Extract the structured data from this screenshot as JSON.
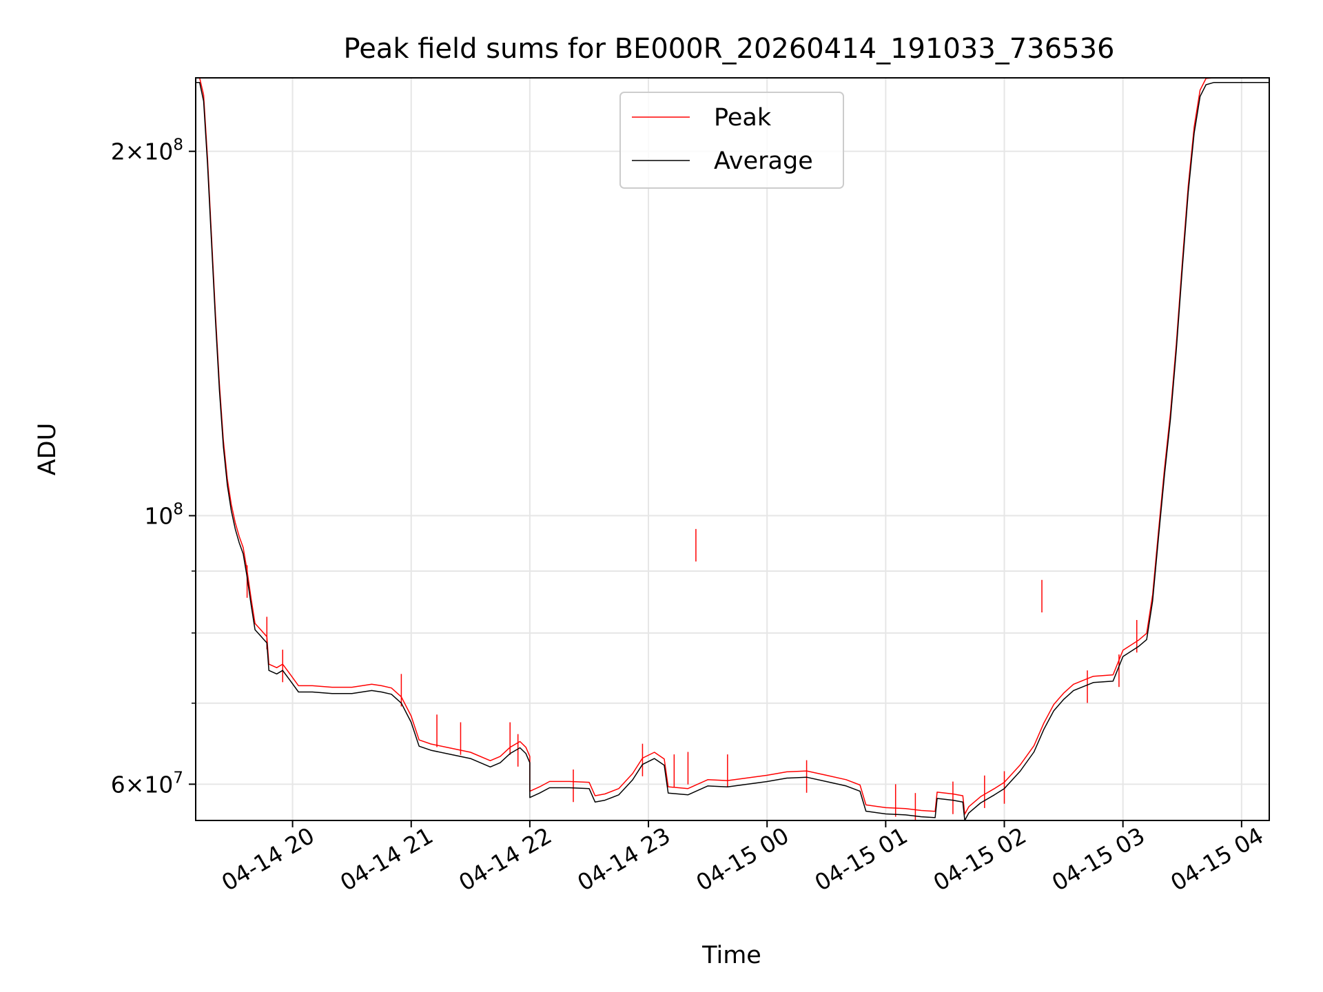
{
  "chart_data": {
    "type": "line",
    "title": "Peak field sums for BE000R_20260414_191033_736536",
    "xlabel": "Time",
    "ylabel": "ADU",
    "y_scale": "log",
    "xlim": [
      "2026-04-14 19:11",
      "2026-04-15 04:14"
    ],
    "ylim": [
      56000000,
      230000000
    ],
    "grid": true,
    "legend_position": "top-center",
    "x_tick_labels": [
      {
        "t": "2026-04-14 20:00",
        "label": "04-14 20"
      },
      {
        "t": "2026-04-14 21:00",
        "label": "04-14 21"
      },
      {
        "t": "2026-04-14 22:00",
        "label": "04-14 22"
      },
      {
        "t": "2026-04-14 23:00",
        "label": "04-14 23"
      },
      {
        "t": "2026-04-15 00:00",
        "label": "04-15 00"
      },
      {
        "t": "2026-04-15 01:00",
        "label": "04-15 01"
      },
      {
        "t": "2026-04-15 02:00",
        "label": "04-15 02"
      },
      {
        "t": "2026-04-15 03:00",
        "label": "04-15 03"
      },
      {
        "t": "2026-04-15 04:00",
        "label": "04-15 04"
      }
    ],
    "y_major_ticks": [
      {
        "value": 60000000,
        "base": "6",
        "exp": "7"
      },
      {
        "value": 100000000,
        "base": "",
        "exp": "8"
      },
      {
        "value": 200000000,
        "base": "2",
        "exp": "8"
      }
    ],
    "y_minor_ticks": [
      70000000,
      80000000,
      90000000
    ],
    "series": [
      {
        "name": "Average",
        "color": "#000000",
        "points": [
          [
            "2026-04-14 19:11",
            228000000
          ],
          [
            "2026-04-14 19:13",
            228000000
          ],
          [
            "2026-04-14 19:15",
            220000000
          ],
          [
            "2026-04-14 19:17",
            195000000
          ],
          [
            "2026-04-14 19:19",
            168000000
          ],
          [
            "2026-04-14 19:21",
            145000000
          ],
          [
            "2026-04-14 19:23",
            127000000
          ],
          [
            "2026-04-14 19:25",
            114000000
          ],
          [
            "2026-04-14 19:27",
            106000000
          ],
          [
            "2026-04-14 19:29",
            101000000
          ],
          [
            "2026-04-14 19:31",
            97500000
          ],
          [
            "2026-04-14 19:33",
            95000000
          ],
          [
            "2026-04-14 19:35",
            93000000
          ],
          [
            "2026-04-14 19:37",
            89000000
          ],
          [
            "2026-04-14 19:39",
            84500000
          ],
          [
            "2026-04-14 19:41",
            80500000
          ],
          [
            "2026-04-14 19:44",
            79500000
          ],
          [
            "2026-04-14 19:47",
            78500000
          ],
          [
            "2026-04-14 19:48",
            74500000
          ],
          [
            "2026-04-14 19:52",
            74000000
          ],
          [
            "2026-04-14 19:55",
            74500000
          ],
          [
            "2026-04-14 19:59",
            73000000
          ],
          [
            "2026-04-14 20:03",
            71500000
          ],
          [
            "2026-04-14 20:10",
            71500000
          ],
          [
            "2026-04-14 20:20",
            71300000
          ],
          [
            "2026-04-14 20:30",
            71300000
          ],
          [
            "2026-04-14 20:40",
            71700000
          ],
          [
            "2026-04-14 20:45",
            71500000
          ],
          [
            "2026-04-14 20:50",
            71200000
          ],
          [
            "2026-04-14 20:55",
            70000000
          ],
          [
            "2026-04-14 21:00",
            67500000
          ],
          [
            "2026-04-14 21:04",
            64500000
          ],
          [
            "2026-04-14 21:10",
            64000000
          ],
          [
            "2026-04-14 21:20",
            63500000
          ],
          [
            "2026-04-14 21:30",
            63000000
          ],
          [
            "2026-04-14 21:40",
            62000000
          ],
          [
            "2026-04-14 21:45",
            62500000
          ],
          [
            "2026-04-14 21:50",
            63600000
          ],
          [
            "2026-04-14 21:55",
            64300000
          ],
          [
            "2026-04-14 21:58",
            63600000
          ],
          [
            "2026-04-14 22:00",
            62500000
          ],
          [
            "2026-04-14 22:00",
            58500000
          ],
          [
            "2026-04-14 22:05",
            59000000
          ],
          [
            "2026-04-14 22:10",
            59600000
          ],
          [
            "2026-04-14 22:20",
            59600000
          ],
          [
            "2026-04-14 22:30",
            59500000
          ],
          [
            "2026-04-14 22:33",
            58000000
          ],
          [
            "2026-04-14 22:38",
            58200000
          ],
          [
            "2026-04-14 22:45",
            58800000
          ],
          [
            "2026-04-14 22:52",
            60500000
          ],
          [
            "2026-04-14 22:57",
            62300000
          ],
          [
            "2026-04-14 23:03",
            63000000
          ],
          [
            "2026-04-14 23:08",
            62200000
          ],
          [
            "2026-04-14 23:10",
            59000000
          ],
          [
            "2026-04-14 23:20",
            58800000
          ],
          [
            "2026-04-14 23:30",
            59800000
          ],
          [
            "2026-04-14 23:40",
            59700000
          ],
          [
            "2026-04-14 23:50",
            60000000
          ],
          [
            "2026-04-15 00:00",
            60300000
          ],
          [
            "2026-04-15 00:10",
            60700000
          ],
          [
            "2026-04-15 00:20",
            60800000
          ],
          [
            "2026-04-15 00:30",
            60300000
          ],
          [
            "2026-04-15 00:40",
            59800000
          ],
          [
            "2026-04-15 00:47",
            59200000
          ],
          [
            "2026-04-15 00:50",
            57000000
          ],
          [
            "2026-04-15 01:00",
            56700000
          ],
          [
            "2026-04-15 01:10",
            56600000
          ],
          [
            "2026-04-15 01:18",
            56400000
          ],
          [
            "2026-04-15 01:25",
            56300000
          ],
          [
            "2026-04-15 01:26",
            58400000
          ],
          [
            "2026-04-15 01:34",
            58200000
          ],
          [
            "2026-04-15 01:39",
            58000000
          ],
          [
            "2026-04-15 01:40",
            56000000
          ],
          [
            "2026-04-15 01:42",
            56800000
          ],
          [
            "2026-04-15 01:48",
            57900000
          ],
          [
            "2026-04-15 01:55",
            58800000
          ],
          [
            "2026-04-15 02:00",
            59500000
          ],
          [
            "2026-04-15 02:08",
            61500000
          ],
          [
            "2026-04-15 02:15",
            63800000
          ],
          [
            "2026-04-15 02:20",
            66600000
          ],
          [
            "2026-04-15 02:25",
            69000000
          ],
          [
            "2026-04-15 02:30",
            70500000
          ],
          [
            "2026-04-15 02:35",
            71700000
          ],
          [
            "2026-04-15 02:45",
            72800000
          ],
          [
            "2026-04-15 02:55",
            73000000
          ],
          [
            "2026-04-15 03:00",
            76500000
          ],
          [
            "2026-04-15 03:08",
            78000000
          ],
          [
            "2026-04-15 03:12",
            79000000
          ],
          [
            "2026-04-15 03:15",
            85000000
          ],
          [
            "2026-04-15 03:18",
            96000000
          ],
          [
            "2026-04-15 03:21",
            108000000
          ],
          [
            "2026-04-15 03:24",
            120000000
          ],
          [
            "2026-04-15 03:27",
            137000000
          ],
          [
            "2026-04-15 03:30",
            160000000
          ],
          [
            "2026-04-15 03:33",
            185000000
          ],
          [
            "2026-04-15 03:36",
            207000000
          ],
          [
            "2026-04-15 03:39",
            222000000
          ],
          [
            "2026-04-15 03:42",
            227000000
          ],
          [
            "2026-04-15 03:46",
            228000000
          ],
          [
            "2026-04-15 04:14",
            228000000
          ]
        ]
      },
      {
        "name": "Peak",
        "color": "#ff0000",
        "spikes": [
          [
            "2026-04-14 19:37",
            91000000
          ],
          [
            "2026-04-14 19:47",
            82500000
          ],
          [
            "2026-04-14 19:55",
            77500000
          ],
          [
            "2026-04-14 20:55",
            74000000
          ],
          [
            "2026-04-14 21:13",
            68500000
          ],
          [
            "2026-04-14 21:25",
            67500000
          ],
          [
            "2026-04-14 21:50",
            67500000
          ],
          [
            "2026-04-14 21:54",
            66000000
          ],
          [
            "2026-04-14 22:22",
            61700000
          ],
          [
            "2026-04-14 22:57",
            64800000
          ],
          [
            "2026-04-14 23:13",
            63500000
          ],
          [
            "2026-04-14 23:20",
            63800000
          ],
          [
            "2026-04-14 23:24",
            97500000
          ],
          [
            "2026-04-14 23:40",
            63500000
          ],
          [
            "2026-04-15 00:20",
            62800000
          ],
          [
            "2026-04-15 01:05",
            60000000
          ],
          [
            "2026-04-15 01:15",
            59000000
          ],
          [
            "2026-04-15 01:34",
            60300000
          ],
          [
            "2026-04-15 01:50",
            61000000
          ],
          [
            "2026-04-15 02:00",
            61500000
          ],
          [
            "2026-04-15 02:19",
            88500000
          ],
          [
            "2026-04-15 02:42",
            74500000
          ],
          [
            "2026-04-15 02:58",
            76800000
          ],
          [
            "2026-04-15 03:07",
            82000000
          ]
        ]
      }
    ]
  }
}
